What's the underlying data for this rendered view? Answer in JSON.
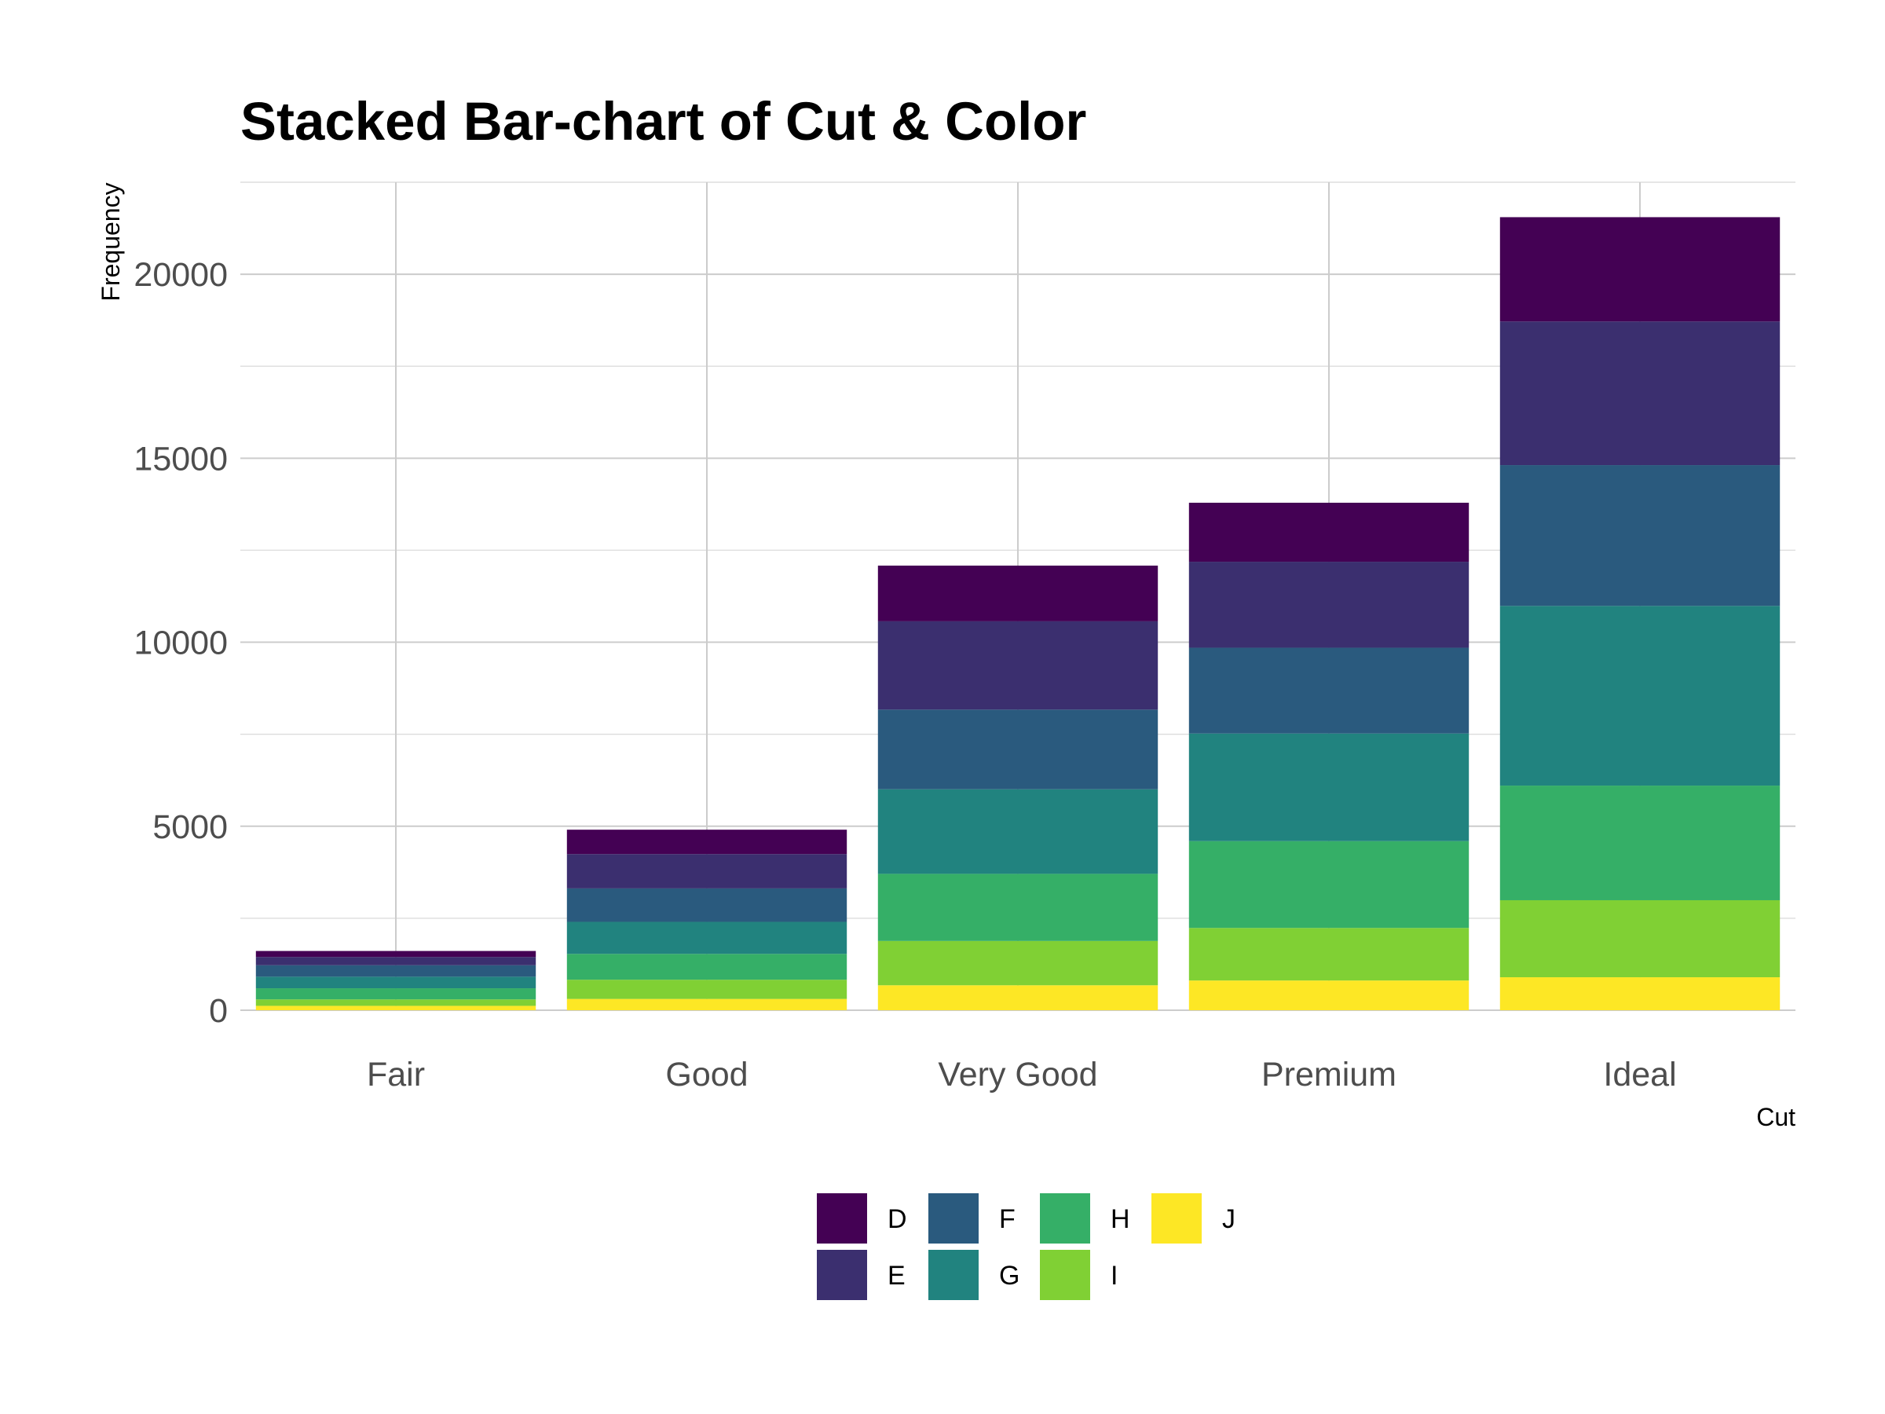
{
  "chart_data": {
    "type": "bar",
    "stacked": true,
    "title": "Stacked Bar-chart of Cut & Color",
    "xlabel": "Cut",
    "ylabel": "Frequency",
    "categories": [
      "Fair",
      "Good",
      "Very Good",
      "Premium",
      "Ideal"
    ],
    "ylim": [
      0,
      22500
    ],
    "yticks": [
      0,
      5000,
      10000,
      15000,
      20000
    ],
    "grid": true,
    "legend_position": "bottom",
    "stack_order": "D on top, J at bottom",
    "series": [
      {
        "name": "D",
        "color": "#440154",
        "values": [
          163,
          662,
          1513,
          1603,
          2834
        ]
      },
      {
        "name": "E",
        "color": "#3B2F6F",
        "values": [
          224,
          933,
          2400,
          2337,
          3903
        ]
      },
      {
        "name": "F",
        "color": "#2A5A7E",
        "values": [
          312,
          909,
          2164,
          2331,
          3826
        ]
      },
      {
        "name": "G",
        "color": "#21837F",
        "values": [
          314,
          871,
          2299,
          2924,
          4884
        ]
      },
      {
        "name": "H",
        "color": "#35AF67",
        "values": [
          303,
          702,
          1824,
          2360,
          3115
        ]
      },
      {
        "name": "I",
        "color": "#80D034",
        "values": [
          175,
          522,
          1204,
          1428,
          2093
        ]
      },
      {
        "name": "J",
        "color": "#FDE725",
        "values": [
          119,
          307,
          678,
          808,
          896
        ]
      }
    ]
  }
}
